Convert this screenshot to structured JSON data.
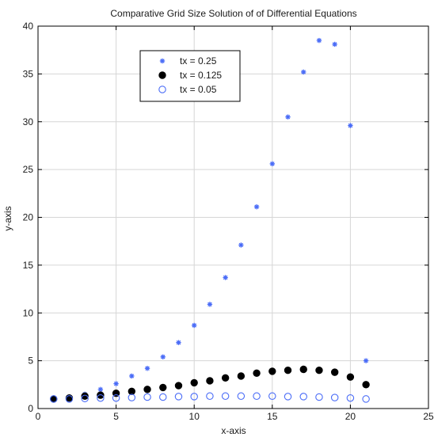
{
  "chart_data": {
    "type": "scatter",
    "title": "Comparative Grid Size Solution of of Differential Equations",
    "xlabel": "x-axis",
    "ylabel": "y-axis",
    "xlim": [
      0,
      25
    ],
    "ylim": [
      0,
      40
    ],
    "xticks": [
      0,
      5,
      10,
      15,
      20,
      25
    ],
    "yticks": [
      0,
      5,
      10,
      15,
      20,
      25,
      30,
      35,
      40
    ],
    "grid": true,
    "legend_position": "top-left",
    "series": [
      {
        "name": "tx = 0.25",
        "marker": "star",
        "color": "#4a6cf7",
        "points": [
          [
            1,
            1.0
          ],
          [
            2,
            1.2
          ],
          [
            3,
            1.5
          ],
          [
            4,
            2.0
          ],
          [
            5,
            2.6
          ],
          [
            6,
            3.4
          ],
          [
            7,
            4.2
          ],
          [
            8,
            5.4
          ],
          [
            9,
            6.9
          ],
          [
            10,
            8.7
          ],
          [
            11,
            10.9
          ],
          [
            12,
            13.7
          ],
          [
            13,
            17.1
          ],
          [
            14,
            21.1
          ],
          [
            15,
            25.6
          ],
          [
            16,
            30.5
          ],
          [
            17,
            35.2
          ],
          [
            18,
            38.5
          ],
          [
            19,
            38.1
          ],
          [
            20,
            29.6
          ],
          [
            21,
            5.0
          ]
        ]
      },
      {
        "name": "tx = 0.125",
        "marker": "filled-circle",
        "color": "#000000",
        "points": [
          [
            1,
            1.0
          ],
          [
            2,
            1.1
          ],
          [
            3,
            1.3
          ],
          [
            4,
            1.4
          ],
          [
            5,
            1.6
          ],
          [
            6,
            1.8
          ],
          [
            7,
            2.0
          ],
          [
            8,
            2.2
          ],
          [
            9,
            2.4
          ],
          [
            10,
            2.7
          ],
          [
            11,
            2.9
          ],
          [
            12,
            3.2
          ],
          [
            13,
            3.4
          ],
          [
            14,
            3.7
          ],
          [
            15,
            3.9
          ],
          [
            16,
            4.0
          ],
          [
            17,
            4.1
          ],
          [
            18,
            4.0
          ],
          [
            19,
            3.8
          ],
          [
            20,
            3.3
          ],
          [
            21,
            2.5
          ]
        ]
      },
      {
        "name": "tx = 0.05",
        "marker": "open-circle",
        "color": "#4a6cf7",
        "points": [
          [
            1,
            1.0
          ],
          [
            2,
            1.0
          ],
          [
            3,
            1.05
          ],
          [
            4,
            1.1
          ],
          [
            5,
            1.1
          ],
          [
            6,
            1.15
          ],
          [
            7,
            1.2
          ],
          [
            8,
            1.2
          ],
          [
            9,
            1.25
          ],
          [
            10,
            1.25
          ],
          [
            11,
            1.3
          ],
          [
            12,
            1.3
          ],
          [
            13,
            1.3
          ],
          [
            14,
            1.3
          ],
          [
            15,
            1.3
          ],
          [
            16,
            1.25
          ],
          [
            17,
            1.25
          ],
          [
            18,
            1.2
          ],
          [
            19,
            1.15
          ],
          [
            20,
            1.1
          ],
          [
            21,
            1.0
          ]
        ]
      }
    ]
  }
}
